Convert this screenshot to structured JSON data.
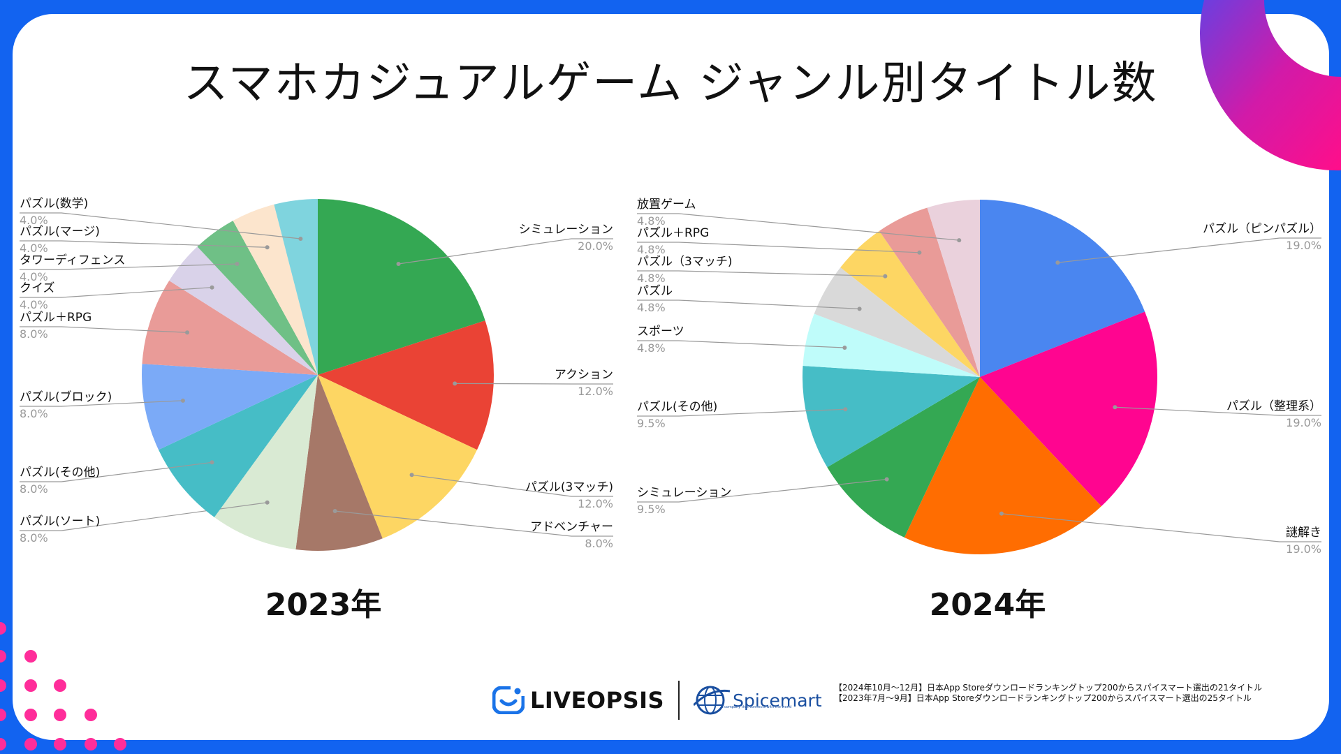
{
  "title": "スマホカジュアルゲーム ジャンル別タイトル数",
  "charts": [
    {
      "type": "pie",
      "year_label": "2023年",
      "slices": [
        {
          "label": "シミュレーション",
          "value": 20.0,
          "value_label": "20.0%",
          "color": "#34a853"
        },
        {
          "label": "アクション",
          "value": 12.0,
          "value_label": "12.0%",
          "color": "#ea4335"
        },
        {
          "label": "パズル(3マッチ)",
          "value": 12.0,
          "value_label": "12.0%",
          "color": "#fdd663"
        },
        {
          "label": "アドベンチャー",
          "value": 8.0,
          "value_label": "8.0%",
          "color": "#a67868"
        },
        {
          "label": "パズル(ソート)",
          "value": 8.0,
          "value_label": "8.0%",
          "color": "#d9ead3"
        },
        {
          "label": "パズル(その他)",
          "value": 8.0,
          "value_label": "8.0%",
          "color": "#46bdc6"
        },
        {
          "label": "パズル(ブロック)",
          "value": 8.0,
          "value_label": "8.0%",
          "color": "#7baaf7"
        },
        {
          "label": "パズル＋RPG",
          "value": 8.0,
          "value_label": "8.0%",
          "color": "#e99b98"
        },
        {
          "label": "クイズ",
          "value": 4.0,
          "value_label": "4.0%",
          "color": "#d9d2e9"
        },
        {
          "label": "タワーディフェンス",
          "value": 4.0,
          "value_label": "4.0%",
          "color": "#6fc086"
        },
        {
          "label": "パズル(マージ)",
          "value": 4.0,
          "value_label": "4.0%",
          "color": "#fce5cd"
        },
        {
          "label": "パズル(数学)",
          "value": 4.0,
          "value_label": "4.0%",
          "color": "#7fd4de"
        }
      ]
    },
    {
      "type": "pie",
      "year_label": "2024年",
      "slices": [
        {
          "label": "パズル（ピンパズル）",
          "value": 19.0,
          "value_label": "19.0%",
          "color": "#4a86f0"
        },
        {
          "label": "パズル（整理系）",
          "value": 19.0,
          "value_label": "19.0%",
          "color": "#ff0590"
        },
        {
          "label": "謎解き",
          "value": 19.0,
          "value_label": "19.0%",
          "color": "#ff6d01"
        },
        {
          "label": "シミュレーション",
          "value": 9.5,
          "value_label": "9.5%",
          "color": "#34a853"
        },
        {
          "label": "パズル(その他)",
          "value": 9.5,
          "value_label": "9.5%",
          "color": "#46bdc6"
        },
        {
          "label": "スポーツ",
          "value": 4.8,
          "value_label": "4.8%",
          "color": "#bffcfa"
        },
        {
          "label": "パズル",
          "value": 4.8,
          "value_label": "4.8%",
          "color": "#d9d9d9"
        },
        {
          "label": "パズル（3マッチ)",
          "value": 4.8,
          "value_label": "4.8%",
          "color": "#fdd663"
        },
        {
          "label": "パズル＋RPG",
          "value": 4.8,
          "value_label": "4.8%",
          "color": "#e99b98"
        },
        {
          "label": "放置ゲーム",
          "value": 4.8,
          "value_label": "4.8%",
          "color": "#ead1dc"
        }
      ]
    }
  ],
  "footer": {
    "logo_liveopsis": "LIVEOPSIS",
    "logo_spicemart": "Spicemart",
    "logo_spicemart_tagline": "A company that connects with the world",
    "note_1": "【2024年10月〜12月】日本App Storeダウンロードランキングトップ200からスパイスマート選出の21タイトル",
    "note_2": "【2023年7月〜9月】日本App Storeダウンロードランキングトップ200からスパイスマート選出の25タイトル"
  },
  "colors": {
    "frame": "#1263f0",
    "accent_pink": "#ff0e8a",
    "accent_purple": "#6a3fe0",
    "dots": "#ff2d9a"
  }
}
